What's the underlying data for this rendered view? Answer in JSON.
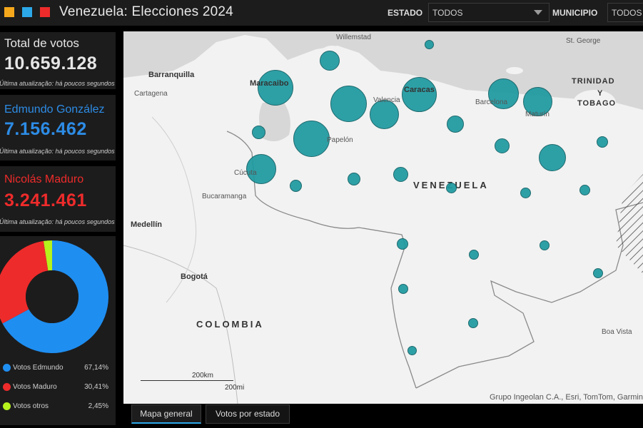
{
  "header": {
    "title": "Venezuela: Elecciones 2024",
    "estado_label": "ESTADO",
    "estado_value": "TODOS",
    "municipio_label": "MUNICIPIO",
    "municipio_value": "TODOS",
    "colors": [
      "#f6a81c",
      "#2ca8e8",
      "#ee2b2b"
    ]
  },
  "cards": [
    {
      "title": "Total de votos",
      "value": "10.659.128",
      "sub": "Última atualização: há poucos segundos",
      "color": "#e6e6e6"
    },
    {
      "title": "Edmundo González",
      "value": "7.156.462",
      "sub": "Última atualização: há poucos segundos",
      "color": "#2d8ce6"
    },
    {
      "title": "Nicolás Maduro",
      "value": "3.241.461",
      "sub": "Última atualização: há poucos segundos",
      "color": "#ee2b2b"
    }
  ],
  "chart_data": {
    "type": "pie",
    "variant": "donut",
    "series": [
      {
        "name": "Votos Edmundo",
        "value": 67.14,
        "label": "67,14%",
        "color": "#1f8ef1"
      },
      {
        "name": "Votos Maduro",
        "value": 30.41,
        "label": "30,41%",
        "color": "#ee2b2b"
      },
      {
        "name": "Votos otros",
        "value": 2.45,
        "label": "2,45%",
        "color": "#b6f21c"
      }
    ]
  },
  "map": {
    "labels": {
      "willemstad": "Willemstad",
      "st_george": "St. George",
      "barranquilla": "Barranquilla",
      "cartagena": "Cartagena",
      "maracaibo": "Maracaibo",
      "caracas": "Caracas",
      "valencia": "Valencia",
      "barcelona": "Barcelona",
      "maturin": "Maturín",
      "trinidad1": "TRINIDAD",
      "trinidad2": "Y",
      "trinidad3": "TOBAGO",
      "papelon": "Papelón",
      "cucuta": "Cúcuta",
      "venezuela": "VENEZUELA",
      "bucaramanga": "Bucaramanga",
      "medellin": "Medellín",
      "bogota": "Bogotá",
      "colombia": "COLOMBIA",
      "boa_vista": "Boa Vista",
      "scale_km": "200km",
      "scale_mi": "200mi",
      "attribution": "Grupo Ingeolan C.A., Esri, TomTom, Garmin"
    }
  },
  "tabs": [
    {
      "label": "Mapa general",
      "active": true
    },
    {
      "label": "Votos por estado",
      "active": false
    }
  ]
}
